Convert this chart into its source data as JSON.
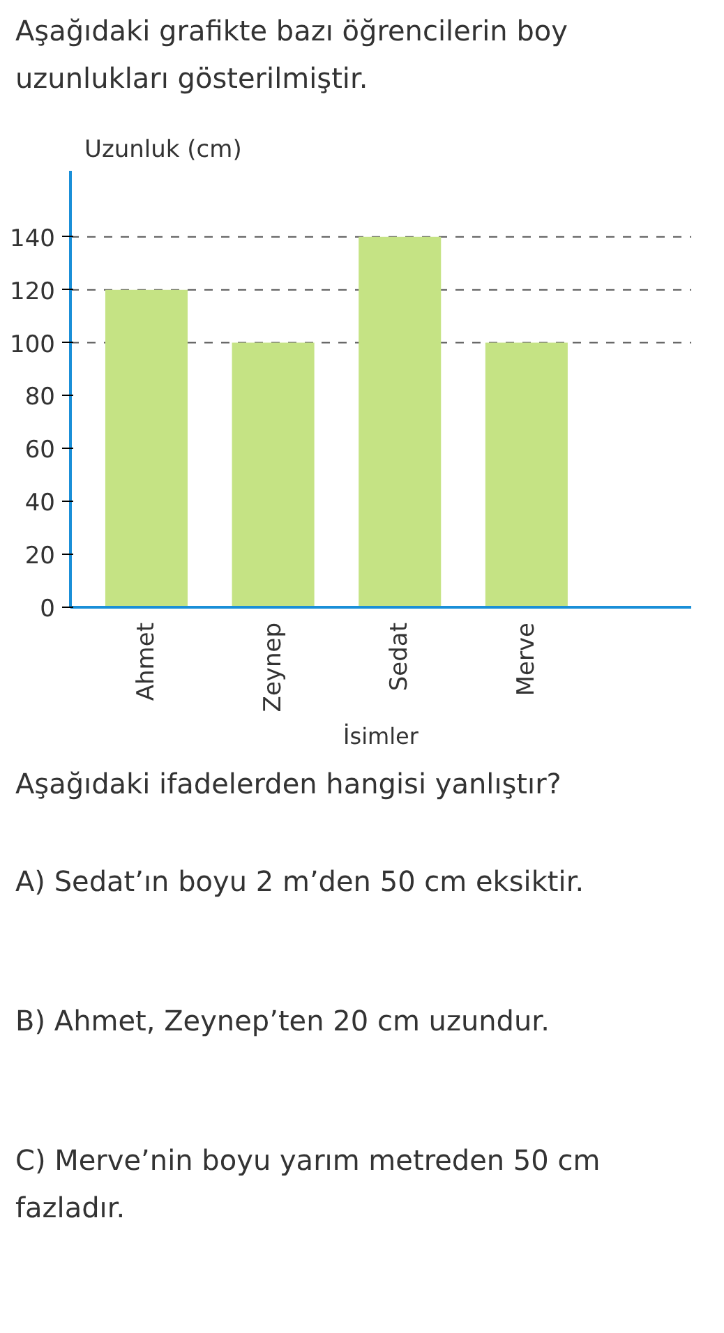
{
  "chart_data": {
    "type": "bar",
    "title": "Aşağıdaki grafikte bazı öğrencilerin boy uzunlukları gösterilmiştir.",
    "ylabel": "Uzunluk (cm)",
    "xlabel": "İsimler",
    "categories": [
      "Ahmet",
      "Zeynep",
      "Sedat",
      "Merve"
    ],
    "values": [
      120,
      100,
      140,
      100
    ],
    "color": "#c5e384",
    "ylim": [
      0,
      165
    ],
    "yticks": [
      0,
      20,
      40,
      60,
      80,
      100,
      120,
      140
    ],
    "grid": false,
    "ref_lines": [
      {
        "axis": "y",
        "value": 140,
        "line_style": "dashed",
        "color": "#555555"
      },
      {
        "axis": "y",
        "value": 120,
        "line_style": "dashed",
        "color": "#555555"
      },
      {
        "axis": "y",
        "value": 100,
        "line_style": "dashed",
        "color": "#555555"
      }
    ],
    "annotations": [
      "Aşağıdaki ifadelerden hangisi yanlıştır?",
      "A) Sedat’ın boyu 2 m’den 50 cm eksiktir.",
      "B) Ahmet, Zeynep’ten 20 cm uzundur.",
      "C) Merve’nin boyu yarım metreden 50 cm fazladır."
    ]
  }
}
